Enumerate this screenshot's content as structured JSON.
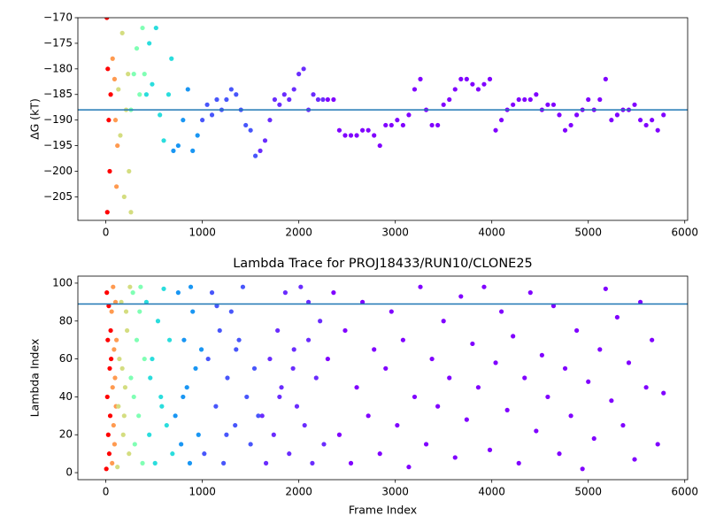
{
  "chart_data": [
    {
      "type": "scatter",
      "ylabel": "ΔG (kT)",
      "xlim": [
        -290,
        6030
      ],
      "ylim": [
        -209.6,
        -170
      ],
      "xticks": [
        0,
        1000,
        2000,
        3000,
        4000,
        5000,
        6000
      ],
      "yticks": [
        {
          "value": -205,
          "label": "−205"
        },
        {
          "value": -200,
          "label": "−200"
        },
        {
          "value": -195,
          "label": "−195"
        },
        {
          "value": -190,
          "label": "−190"
        },
        {
          "value": -185,
          "label": "−185"
        },
        {
          "value": -180,
          "label": "−180"
        },
        {
          "value": -175,
          "label": "−175"
        },
        {
          "value": -170,
          "label": "−170"
        }
      ],
      "hline": -188,
      "hline_color": "#1f77b4",
      "series": [
        {
          "color": "#ff0000",
          "x": [
            10,
            15,
            20,
            30,
            40,
            50
          ],
          "values": [
            -170,
            -208,
            -180,
            -190,
            -200,
            -185
          ]
        },
        {
          "color": "#ff9a50",
          "x": [
            70,
            90,
            100,
            110,
            120
          ],
          "values": [
            -178,
            -182,
            -190,
            -203,
            -195
          ]
        },
        {
          "color": "#d4dd80",
          "x": [
            130,
            150,
            170,
            190,
            210,
            230,
            240,
            260
          ],
          "values": [
            -184,
            -193,
            -173,
            -205,
            -188,
            -181,
            -200,
            -208
          ]
        },
        {
          "color": "#80ffb4",
          "x": [
            260,
            290,
            320,
            350,
            380,
            400
          ],
          "values": [
            -188,
            -181,
            -176,
            -185,
            -172,
            -181
          ]
        },
        {
          "color": "#2adddd",
          "x": [
            420,
            450,
            480,
            520,
            560,
            600,
            650,
            680
          ],
          "values": [
            -185,
            -175,
            -183,
            -172,
            -189,
            -194,
            -185,
            -178
          ]
        },
        {
          "color": "#1996f3",
          "x": [
            700,
            750,
            800,
            850,
            900,
            950
          ],
          "values": [
            -196,
            -195,
            -190,
            -184,
            -196,
            -193
          ]
        },
        {
          "color": "#4856fb",
          "x": [
            1000,
            1050,
            1100,
            1150,
            1200,
            1250,
            1300,
            1350,
            1400,
            1450,
            1500,
            1550
          ],
          "values": [
            -190,
            -187,
            -189,
            -186,
            -188,
            -186,
            -184,
            -185,
            -188,
            -191,
            -192,
            -197
          ]
        },
        {
          "color": "#6a2cfe",
          "x": [
            1600,
            1650,
            1700,
            1750,
            1800,
            1850,
            1900,
            1950,
            2000,
            2050,
            2100,
            2150,
            2200,
            2250
          ],
          "values": [
            -196,
            -194,
            -190,
            -186,
            -187,
            -185,
            -186,
            -184,
            -181,
            -180,
            -188,
            -185,
            -186,
            -186
          ]
        },
        {
          "color": "#8000ff",
          "x": [
            2300,
            2360,
            2420,
            2480,
            2540,
            2600,
            2660,
            2720,
            2780,
            2840,
            2900,
            2960,
            3020,
            3080,
            3140,
            3200,
            3260,
            3320,
            3380,
            3440,
            3500,
            3560,
            3620,
            3680,
            3740,
            3800,
            3860,
            3920,
            3980,
            4040,
            4100,
            4160,
            4220,
            4280,
            4340,
            4400,
            4460,
            4520,
            4580,
            4640,
            4700,
            4760,
            4820,
            4880,
            4940,
            5000,
            5060,
            5120,
            5180,
            5240,
            5300,
            5360,
            5420,
            5480,
            5540,
            5600,
            5660,
            5720,
            5780
          ],
          "values": [
            -186,
            -186,
            -192,
            -193,
            -193,
            -193,
            -192,
            -192,
            -193,
            -195,
            -191,
            -191,
            -190,
            -191,
            -189,
            -184,
            -182,
            -188,
            -191,
            -191,
            -187,
            -186,
            -184,
            -182,
            -182,
            -183,
            -184,
            -183,
            -182,
            -192,
            -190,
            -188,
            -187,
            -186,
            -186,
            -186,
            -185,
            -188,
            -187,
            -187,
            -189,
            -192,
            -191,
            -189,
            -188,
            -186,
            -188,
            -186,
            -182,
            -190,
            -189,
            -188,
            -188,
            -187,
            -190,
            -191,
            -190,
            -192,
            -189
          ]
        }
      ]
    },
    {
      "type": "scatter",
      "title": "Lambda Trace for PROJ18433/RUN10/CLONE25",
      "xlabel": "Frame Index",
      "ylabel": "Lambda Index",
      "xlim": [
        -290,
        6030
      ],
      "ylim": [
        -3.7,
        103.7
      ],
      "xticks": [
        0,
        1000,
        2000,
        3000,
        4000,
        5000,
        6000
      ],
      "yticks": [
        0,
        20,
        40,
        60,
        80,
        100
      ],
      "hline": 89,
      "hline_color": "#1f77b4",
      "series": [
        {
          "color": "#ff0000",
          "x": [
            5,
            10,
            15,
            20,
            25,
            30,
            35,
            40,
            45,
            50,
            55
          ],
          "values": [
            2,
            95,
            40,
            70,
            20,
            88,
            10,
            55,
            30,
            75,
            60
          ]
        },
        {
          "color": "#ff9a50",
          "x": [
            60,
            65,
            70,
            75,
            80,
            85,
            90,
            95,
            100,
            105,
            110
          ],
          "values": [
            85,
            5,
            45,
            98,
            25,
            65,
            15,
            50,
            90,
            35,
            70
          ]
        },
        {
          "color": "#d4dd80",
          "x": [
            120,
            140,
            160,
            180,
            200,
            220,
            240,
            250,
            130,
            170,
            210,
            190
          ],
          "values": [
            3,
            60,
            90,
            20,
            45,
            75,
            10,
            98,
            35,
            55,
            85,
            30
          ]
        },
        {
          "color": "#80ffb4",
          "x": [
            260,
            280,
            300,
            320,
            340,
            360,
            380,
            400,
            290,
            350
          ],
          "values": [
            50,
            95,
            15,
            70,
            30,
            98,
            5,
            60,
            40,
            85
          ]
        },
        {
          "color": "#2adddd",
          "x": [
            420,
            450,
            480,
            510,
            540,
            570,
            600,
            630,
            660,
            690,
            460,
            580
          ],
          "values": [
            90,
            20,
            60,
            5,
            80,
            40,
            97,
            25,
            70,
            10,
            50,
            35
          ]
        },
        {
          "color": "#1996f3",
          "x": [
            720,
            750,
            780,
            810,
            840,
            870,
            900,
            930,
            960,
            990,
            800,
            880
          ],
          "values": [
            30,
            95,
            15,
            70,
            45,
            5,
            85,
            55,
            20,
            65,
            40,
            98
          ]
        },
        {
          "color": "#4856fb",
          "x": [
            1020,
            1060,
            1100,
            1140,
            1180,
            1220,
            1260,
            1300,
            1340,
            1380,
            1420,
            1460,
            1500,
            1540,
            1580,
            1150,
            1250,
            1350
          ],
          "values": [
            10,
            60,
            95,
            35,
            75,
            5,
            50,
            85,
            25,
            70,
            98,
            40,
            15,
            55,
            30,
            88,
            20,
            65
          ]
        },
        {
          "color": "#6a2cfe",
          "x": [
            1620,
            1660,
            1700,
            1740,
            1780,
            1820,
            1860,
            1900,
            1940,
            1980,
            2020,
            2060,
            2100,
            2140,
            2180,
            2220,
            2260,
            1800,
            1950,
            2100
          ],
          "values": [
            30,
            5,
            60,
            20,
            75,
            45,
            95,
            10,
            55,
            35,
            98,
            25,
            70,
            5,
            50,
            80,
            15,
            40,
            65,
            90
          ]
        },
        {
          "color": "#8000ff",
          "x": [
            2300,
            2360,
            2420,
            2480,
            2540,
            2600,
            2660,
            2720,
            2780,
            2840,
            2900,
            2960,
            3020,
            3080,
            3140,
            3200,
            3260,
            3320,
            3380,
            3440,
            3500,
            3560,
            3620,
            3680,
            3740,
            3800,
            3860,
            3920,
            3980,
            4040,
            4100,
            4160,
            4220,
            4280,
            4340,
            4400,
            4460,
            4520,
            4580,
            4640,
            4700,
            4760,
            4820,
            4880,
            4940,
            5000,
            5060,
            5120,
            5180,
            5240,
            5300,
            5360,
            5420,
            5480,
            5540,
            5600,
            5660,
            5720,
            5780
          ],
          "values": [
            60,
            95,
            20,
            75,
            5,
            45,
            90,
            30,
            65,
            10,
            55,
            85,
            25,
            70,
            3,
            40,
            98,
            15,
            60,
            35,
            80,
            50,
            8,
            93,
            28,
            68,
            45,
            98,
            12,
            58,
            85,
            33,
            72,
            5,
            50,
            95,
            22,
            62,
            40,
            88,
            10,
            55,
            30,
            75,
            2,
            48,
            18,
            65,
            97,
            38,
            82,
            25,
            58,
            7,
            90,
            45,
            70,
            15,
            42
          ]
        }
      ]
    }
  ]
}
